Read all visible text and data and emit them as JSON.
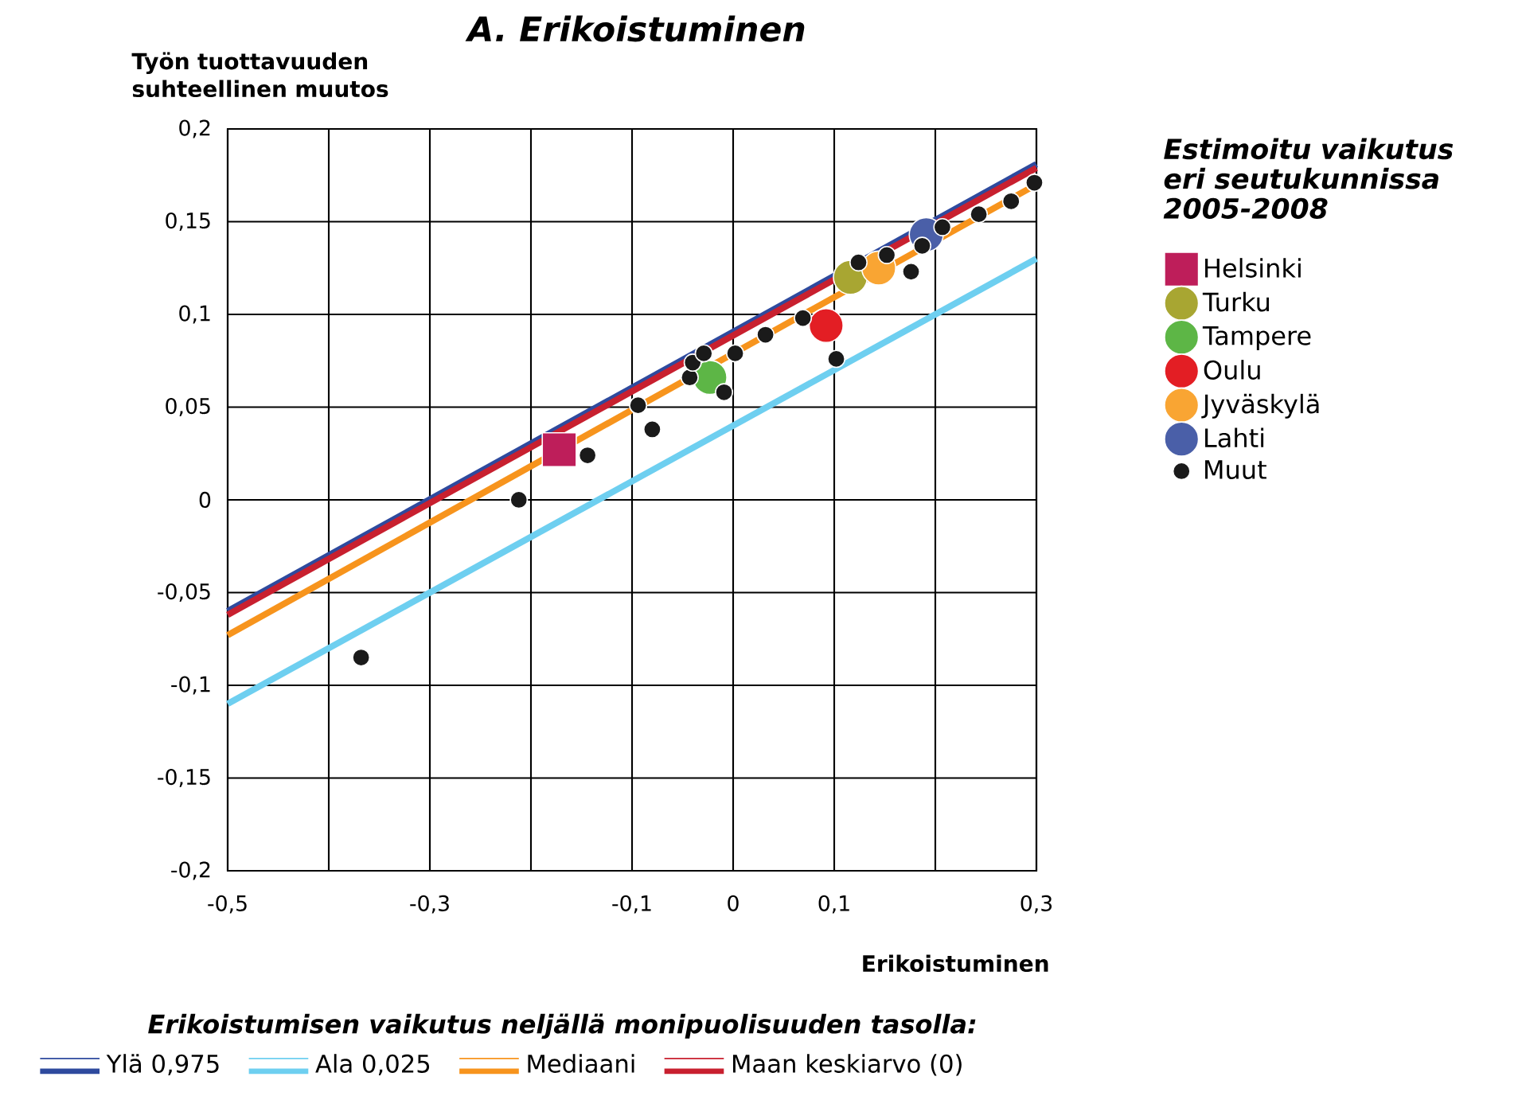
{
  "chart_data": {
    "type": "scatter",
    "title": "A. Erikoistuminen",
    "xlabel": "Erikoistuminen",
    "ylabel": "Työn tuottavuuden suhteellinen muutos",
    "legend_title": "Estimoitu vaikutus eri seutukunnissa 2005-2008",
    "annotations": [
      "Erikoistumisen vaikutus neljällä monipuolisuuden tasolla:"
    ],
    "xlim": [
      -0.5,
      0.3
    ],
    "ylim": [
      -0.2,
      0.2
    ],
    "xticks": [
      {
        "value": -0.5,
        "label": "-0,5"
      },
      {
        "value": -0.4,
        "label": null
      },
      {
        "value": -0.3,
        "label": "-0,3"
      },
      {
        "value": -0.2,
        "label": null
      },
      {
        "value": -0.1,
        "label": "-0,1"
      },
      {
        "value": 0,
        "label": "0"
      },
      {
        "value": 0.1,
        "label": "0,1"
      },
      {
        "value": 0.2,
        "label": null
      },
      {
        "value": 0.3,
        "label": "0,3"
      }
    ],
    "yticks": [
      {
        "value": -0.2,
        "label": "-0,2"
      },
      {
        "value": -0.15,
        "label": "-0,15"
      },
      {
        "value": -0.1,
        "label": "-0,1"
      },
      {
        "value": -0.05,
        "label": "-0,05"
      },
      {
        "value": 0,
        "label": "0"
      },
      {
        "value": 0.05,
        "label": "0,05"
      },
      {
        "value": 0.1,
        "label": "0,1"
      },
      {
        "value": 0.15,
        "label": "0,15"
      },
      {
        "value": 0.2,
        "label": "0,2"
      }
    ],
    "grid": true,
    "legend": "right",
    "series": [
      {
        "name": "Ylä 0,975",
        "type": "line",
        "color": "#2e4a9e",
        "x": [
          -0.5,
          0.3
        ],
        "values": [
          -0.06,
          0.181
        ]
      },
      {
        "name": "Ala 0,025",
        "type": "line",
        "color": "#6ecff0",
        "x": [
          -0.5,
          0.3
        ],
        "values": [
          -0.11,
          0.13
        ]
      },
      {
        "name": "Mediaani",
        "type": "line",
        "color": "#f7941d",
        "x": [
          -0.5,
          0.3
        ],
        "values": [
          -0.073,
          0.17
        ]
      },
      {
        "name": "Maan keskiarvo (0)",
        "type": "line",
        "color": "#c8202f",
        "x": [
          -0.5,
          0.3
        ],
        "values": [
          -0.062,
          0.179
        ]
      },
      {
        "name": "Helsinki",
        "marker": "square",
        "color": "#be1e5a",
        "x": [
          -0.172
        ],
        "values": [
          0.027
        ]
      },
      {
        "name": "Turku",
        "marker": "circle",
        "color": "#a8a632",
        "x": [
          0.116
        ],
        "values": [
          0.12
        ]
      },
      {
        "name": "Tampere",
        "marker": "circle",
        "color": "#5db646",
        "x": [
          -0.023
        ],
        "values": [
          0.066
        ]
      },
      {
        "name": "Oulu",
        "marker": "circle",
        "color": "#e31e24",
        "x": [
          0.092
        ],
        "values": [
          0.094
        ]
      },
      {
        "name": "Jyväskylä",
        "marker": "circle",
        "color": "#f9a533",
        "x": [
          0.144
        ],
        "values": [
          0.125
        ]
      },
      {
        "name": "Lahti",
        "marker": "circle",
        "color": "#4a5fa8",
        "x": [
          0.191
        ],
        "values": [
          0.143
        ]
      },
      {
        "name": "Muut",
        "marker": "circle",
        "color": "#1a1a1a",
        "x": [
          -0.368,
          -0.212,
          -0.144,
          -0.094,
          -0.08,
          -0.043,
          -0.04,
          -0.029,
          -0.009,
          0.002,
          0.032,
          0.069,
          0.102,
          0.124,
          0.152,
          0.176,
          0.187,
          0.207,
          0.243,
          0.275,
          0.298
        ],
        "values": [
          -0.085,
          0.0,
          0.024,
          0.051,
          0.038,
          0.066,
          0.074,
          0.079,
          0.058,
          0.079,
          0.089,
          0.098,
          0.076,
          0.128,
          0.132,
          0.123,
          0.137,
          0.147,
          0.154,
          0.161,
          0.171
        ]
      }
    ]
  }
}
